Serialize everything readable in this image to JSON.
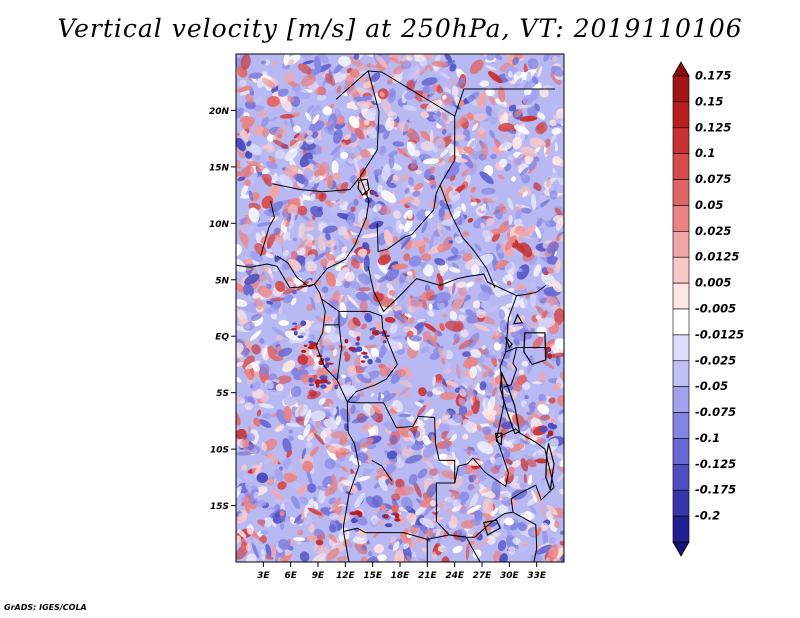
{
  "title": "Vertical velocity [m/s] at 250hPa, VT: 2019110106",
  "footer": "GrADS: IGES/COLA",
  "map": {
    "lon_range": [
      0,
      36
    ],
    "lat_range": [
      -20,
      25
    ],
    "lat_ticks": [
      {
        "lat": 20,
        "label": "20N"
      },
      {
        "lat": 15,
        "label": "15N"
      },
      {
        "lat": 10,
        "label": "10N"
      },
      {
        "lat": 5,
        "label": "5N"
      },
      {
        "lat": 0,
        "label": "EQ"
      },
      {
        "lat": -5,
        "label": "5S"
      },
      {
        "lat": -10,
        "label": "10S"
      },
      {
        "lat": -15,
        "label": "15S"
      }
    ],
    "lon_ticks": [
      {
        "lon": 3,
        "label": "3E"
      },
      {
        "lon": 6,
        "label": "6E"
      },
      {
        "lon": 9,
        "label": "9E"
      },
      {
        "lon": 12,
        "label": "12E"
      },
      {
        "lon": 15,
        "label": "15E"
      },
      {
        "lon": 18,
        "label": "18E"
      },
      {
        "lon": 21,
        "label": "21E"
      },
      {
        "lon": 24,
        "label": "24E"
      },
      {
        "lon": 27,
        "label": "27E"
      },
      {
        "lon": 30,
        "label": "30E"
      },
      {
        "lon": 33,
        "label": "33E"
      }
    ]
  },
  "colorbar": {
    "levels": [
      {
        "label": "0.175",
        "color": "#a31414"
      },
      {
        "label": "0.15",
        "color": "#b81e1e"
      },
      {
        "label": "0.125",
        "color": "#c83232"
      },
      {
        "label": "0.1",
        "color": "#d64a4a"
      },
      {
        "label": "0.075",
        "color": "#e06666"
      },
      {
        "label": "0.05",
        "color": "#ea8484"
      },
      {
        "label": "0.025",
        "color": "#f2a6a6"
      },
      {
        "label": "0.0125",
        "color": "#f8c8c8"
      },
      {
        "label": "0.005",
        "color": "#fde6e6"
      },
      {
        "label": "-0.005",
        "color": "#ffffff"
      },
      {
        "label": "-0.0125",
        "color": "#dcdcfc"
      },
      {
        "label": "-0.025",
        "color": "#c0c0f6"
      },
      {
        "label": "-0.05",
        "color": "#a2a2ee"
      },
      {
        "label": "-0.075",
        "color": "#8484e2"
      },
      {
        "label": "-0.1",
        "color": "#6868d4"
      },
      {
        "label": "-0.125",
        "color": "#4e4ec2"
      },
      {
        "label": "-0.175",
        "color": "#3636ac"
      },
      {
        "label": "-0.2",
        "color": "#221f92"
      }
    ],
    "top_color": "#8c0c0c",
    "bottom_color": "#16127a"
  }
}
